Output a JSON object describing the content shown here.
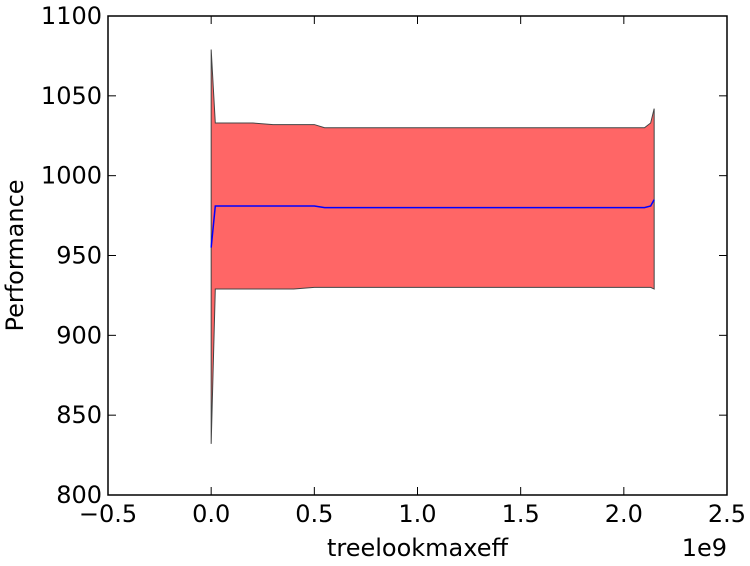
{
  "chart_data": {
    "type": "area",
    "title": "",
    "xlabel": "treelookmaxeff",
    "ylabel": "Performance",
    "x_offset_label": "1e9",
    "xlim": [
      -0.5,
      2.5
    ],
    "ylim": [
      800,
      1100
    ],
    "xticks": [
      -0.5,
      0.0,
      0.5,
      1.0,
      1.5,
      2.0,
      2.5
    ],
    "xtick_labels": [
      "−0.5",
      "0.0",
      "0.5",
      "1.0",
      "1.5",
      "2.0",
      "2.5"
    ],
    "yticks": [
      800,
      850,
      900,
      950,
      1000,
      1050,
      1100
    ],
    "ytick_labels": [
      "800",
      "850",
      "900",
      "950",
      "1000",
      "1050",
      "1100"
    ],
    "grid": false,
    "series": [
      {
        "x": [
          0.0,
          0.02,
          0.1,
          0.2,
          0.3,
          0.4,
          0.5,
          0.55,
          0.75,
          1.0,
          1.25,
          1.5,
          1.75,
          2.0,
          2.1,
          2.13,
          2.147
        ],
        "mean": [
          955,
          981,
          981,
          981,
          981,
          981,
          981,
          980,
          980,
          980,
          980,
          980,
          980,
          980,
          980,
          981,
          985
        ],
        "upper": [
          1079,
          1033,
          1033,
          1033,
          1032,
          1032,
          1032,
          1030,
          1030,
          1030,
          1030,
          1030,
          1030,
          1030,
          1030,
          1033,
          1042
        ],
        "lower": [
          832,
          929,
          929,
          929,
          929,
          929,
          930,
          930,
          930,
          930,
          930,
          930,
          930,
          930,
          930,
          930,
          929
        ]
      }
    ],
    "colors": {
      "band_fill": "#ff6666",
      "band_edge": "#444444",
      "mean_line": "#0000ff"
    }
  }
}
